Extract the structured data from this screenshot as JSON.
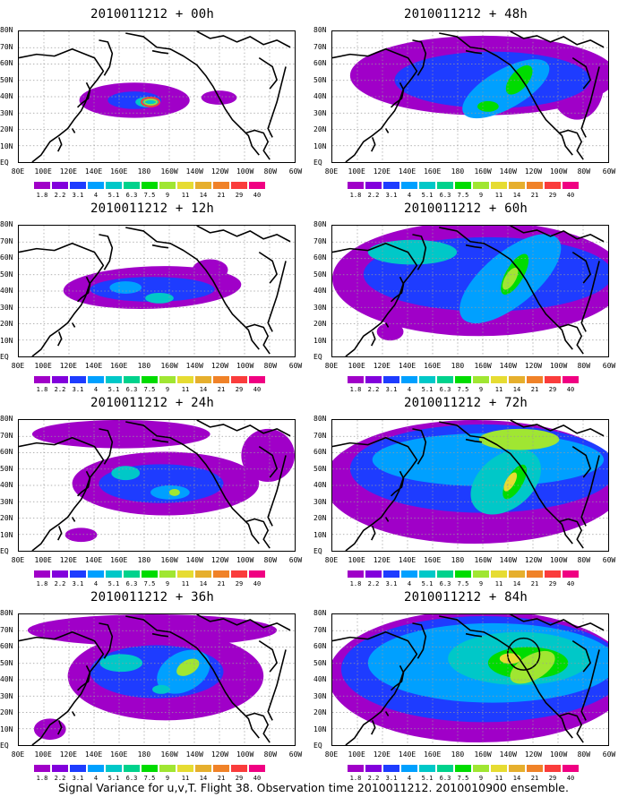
{
  "lat_labels": [
    "80N",
    "70N",
    "60N",
    "50N",
    "40N",
    "30N",
    "20N",
    "10N",
    "EQ"
  ],
  "lon_labels": [
    "80E",
    "100E",
    "120E",
    "140E",
    "160E",
    "180",
    "160W",
    "140W",
    "120W",
    "100W",
    "80W",
    "60W"
  ],
  "colorbar": {
    "labels": [
      "1.8",
      "2.2",
      "3.1",
      "4",
      "5.1",
      "6.3",
      "7.5",
      "9",
      "11",
      "14",
      "21",
      "29",
      "40"
    ],
    "colors": [
      "#a000c8",
      "#8200dc",
      "#1e3cff",
      "#00a0ff",
      "#00c8c8",
      "#00d28c",
      "#00dc00",
      "#a0e632",
      "#e6dc32",
      "#e6af2d",
      "#f08228",
      "#fa3c3c",
      "#f00082"
    ]
  },
  "coast_color": "#000000",
  "panels": [
    {
      "title": "2010011212 + 00h",
      "level": 0
    },
    {
      "title": "2010011212 + 48h",
      "level": 4
    },
    {
      "title": "2010011212 + 12h",
      "level": 1
    },
    {
      "title": "2010011212 + 60h",
      "level": 5
    },
    {
      "title": "2010011212 + 24h",
      "level": 2
    },
    {
      "title": "2010011212 + 72h",
      "level": 6
    },
    {
      "title": "2010011212 + 36h",
      "level": 3
    },
    {
      "title": "2010011212 + 84h",
      "level": 7
    }
  ],
  "footer": "Signal Variance for u,v,T. Flight 38. Observation time 2010011212. 2010010900 ensemble."
}
